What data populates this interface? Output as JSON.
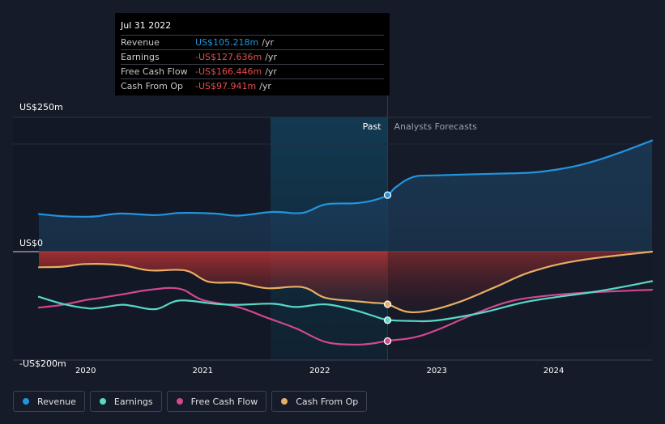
{
  "tooltip": {
    "date": "Jul 31 2022",
    "rows": [
      {
        "label": "Revenue",
        "value": "US$105.218m",
        "unit": "/yr",
        "color": "#2394df"
      },
      {
        "label": "Earnings",
        "value": "-US$127.636m",
        "unit": "/yr",
        "color": "#e84b4b"
      },
      {
        "label": "Free Cash Flow",
        "value": "-US$166.446m",
        "unit": "/yr",
        "color": "#e84b4b"
      },
      {
        "label": "Cash From Op",
        "value": "-US$97.941m",
        "unit": "/yr",
        "color": "#e84b4b"
      }
    ]
  },
  "chart_data": {
    "type": "line",
    "title": "",
    "xlabel": "",
    "ylabel": "",
    "xlim": [
      2019.6,
      2024.84
    ],
    "ylim": [
      -200,
      250
    ],
    "y_tick_labels": [
      {
        "value": 250,
        "label": "US$250m"
      },
      {
        "value": 0,
        "label": "US$0"
      },
      {
        "value": -200,
        "label": "-US$200m"
      }
    ],
    "x_ticks": [
      2020,
      2021,
      2022,
      2023,
      2024
    ],
    "x_tick_labels": [
      "2020",
      "2021",
      "2022",
      "2023",
      "2024"
    ],
    "divider_x": 2022.58,
    "highlight_start_x": 2021.58,
    "past_label": "Past",
    "forecast_label": "Analysts Forecasts",
    "series": [
      {
        "name": "Revenue",
        "color": "#2394df",
        "points": [
          [
            2019.6,
            70
          ],
          [
            2019.8,
            66
          ],
          [
            2020,
            65
          ],
          [
            2020.1,
            66
          ],
          [
            2020.3,
            71
          ],
          [
            2020.6,
            68
          ],
          [
            2020.8,
            72
          ],
          [
            2021.1,
            71
          ],
          [
            2021.3,
            67
          ],
          [
            2021.6,
            74
          ],
          [
            2021.85,
            72
          ],
          [
            2022.05,
            88
          ],
          [
            2022.3,
            90
          ],
          [
            2022.45,
            95
          ],
          [
            2022.58,
            105
          ],
          [
            2022.65,
            120
          ],
          [
            2022.8,
            139
          ],
          [
            2023.0,
            142
          ],
          [
            2023.5,
            145
          ],
          [
            2023.8,
            147
          ],
          [
            2024.0,
            152
          ],
          [
            2024.2,
            160
          ],
          [
            2024.4,
            172
          ],
          [
            2024.6,
            187
          ],
          [
            2024.84,
            207
          ]
        ]
      },
      {
        "name": "Earnings",
        "color": "#59d8c6",
        "points": [
          [
            2019.6,
            -84
          ],
          [
            2019.8,
            -97
          ],
          [
            2020,
            -105
          ],
          [
            2020.1,
            -105
          ],
          [
            2020.3,
            -99
          ],
          [
            2020.4,
            -101
          ],
          [
            2020.6,
            -107
          ],
          [
            2020.8,
            -91
          ],
          [
            2021.1,
            -97
          ],
          [
            2021.3,
            -99
          ],
          [
            2021.6,
            -97
          ],
          [
            2021.8,
            -103
          ],
          [
            2022.05,
            -98
          ],
          [
            2022.3,
            -109
          ],
          [
            2022.45,
            -119
          ],
          [
            2022.58,
            -127
          ],
          [
            2022.8,
            -129
          ],
          [
            2023.0,
            -128
          ],
          [
            2023.4,
            -113
          ],
          [
            2023.8,
            -92
          ],
          [
            2024.4,
            -73
          ],
          [
            2024.84,
            -55
          ]
        ]
      },
      {
        "name": "Free Cash Flow",
        "color": "#d1488f",
        "points": [
          [
            2019.6,
            -104
          ],
          [
            2019.8,
            -99
          ],
          [
            2020,
            -90
          ],
          [
            2020.1,
            -87
          ],
          [
            2020.3,
            -80
          ],
          [
            2020.55,
            -71
          ],
          [
            2020.8,
            -69
          ],
          [
            2021.0,
            -90
          ],
          [
            2021.3,
            -103
          ],
          [
            2021.55,
            -123
          ],
          [
            2021.8,
            -143
          ],
          [
            2022.05,
            -168
          ],
          [
            2022.3,
            -173
          ],
          [
            2022.45,
            -171
          ],
          [
            2022.58,
            -166
          ],
          [
            2022.8,
            -160
          ],
          [
            2023.0,
            -146
          ],
          [
            2023.3,
            -118
          ],
          [
            2023.6,
            -94
          ],
          [
            2023.9,
            -83
          ],
          [
            2024.3,
            -76
          ],
          [
            2024.84,
            -71
          ]
        ]
      },
      {
        "name": "Cash From Op",
        "color": "#e8ae62",
        "points": [
          [
            2019.6,
            -29
          ],
          [
            2019.8,
            -28
          ],
          [
            2020,
            -23
          ],
          [
            2020.3,
            -25
          ],
          [
            2020.55,
            -35
          ],
          [
            2020.85,
            -35
          ],
          [
            2021.05,
            -56
          ],
          [
            2021.3,
            -58
          ],
          [
            2021.55,
            -68
          ],
          [
            2021.85,
            -66
          ],
          [
            2022.05,
            -86
          ],
          [
            2022.3,
            -92
          ],
          [
            2022.45,
            -95
          ],
          [
            2022.58,
            -98
          ],
          [
            2022.75,
            -112
          ],
          [
            2022.95,
            -109
          ],
          [
            2023.2,
            -93
          ],
          [
            2023.5,
            -66
          ],
          [
            2023.8,
            -38
          ],
          [
            2024.2,
            -17
          ],
          [
            2024.84,
            0
          ]
        ]
      }
    ],
    "highlight_points": [
      {
        "series": "Revenue",
        "x": 2022.58,
        "y": 105.2
      },
      {
        "series": "Earnings",
        "x": 2022.58,
        "y": -127.6
      },
      {
        "series": "Free Cash Flow",
        "x": 2022.58,
        "y": -166.4
      },
      {
        "series": "Cash From Op",
        "x": 2022.58,
        "y": -97.9
      }
    ]
  },
  "legend": [
    {
      "label": "Revenue",
      "color": "#2394df"
    },
    {
      "label": "Earnings",
      "color": "#59d8c6"
    },
    {
      "label": "Free Cash Flow",
      "color": "#d1488f"
    },
    {
      "label": "Cash From Op",
      "color": "#e8ae62"
    }
  ]
}
